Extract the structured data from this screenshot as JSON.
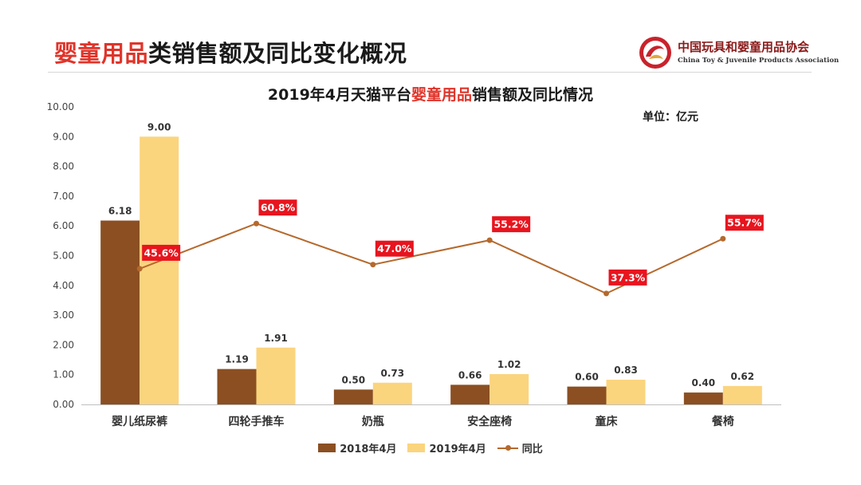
{
  "header": {
    "title_accent": "婴童用品",
    "title_rest": "类销售额及同比变化概况",
    "logo_cn": "中国玩具和婴童用品协会",
    "logo_en": "China Toy & Juvenile Products Association"
  },
  "chart_data": {
    "type": "bar",
    "title_prefix": "2019年4月天猫平台",
    "title_accent": "婴童用品",
    "title_suffix": "销售额及同比情况",
    "unit": "单位：亿元",
    "categories": [
      "婴儿纸尿裤",
      "四轮手推车",
      "奶瓶",
      "安全座椅",
      "童床",
      "餐椅"
    ],
    "series": [
      {
        "name": "2018年4月",
        "color": "#8b4f22",
        "values": [
          6.18,
          1.19,
          0.5,
          0.66,
          0.6,
          0.4
        ],
        "labels": [
          "6.18",
          "1.19",
          "0.50",
          "0.66",
          "0.60",
          "0.40"
        ]
      },
      {
        "name": "2019年4月",
        "color": "#fbd47e",
        "values": [
          9.0,
          1.91,
          0.73,
          1.02,
          0.83,
          0.62
        ],
        "labels": [
          "9.00",
          "1.91",
          "0.73",
          "1.02",
          "0.83",
          "0.62"
        ]
      }
    ],
    "line_series": {
      "name": "同比",
      "color": "#b5692d",
      "values": [
        45.6,
        60.8,
        47.0,
        55.2,
        37.3,
        55.7
      ],
      "labels": [
        "45.6%",
        "60.8%",
        "47.0%",
        "55.2%",
        "37.3%",
        "55.7%"
      ],
      "label_color": "#e8141e"
    },
    "ylim": [
      0,
      10
    ],
    "yticks": [
      "0.00",
      "1.00",
      "2.00",
      "3.00",
      "4.00",
      "5.00",
      "6.00",
      "7.00",
      "8.00",
      "9.00",
      "10.00"
    ],
    "grid": false,
    "legend_position": "bottom"
  }
}
